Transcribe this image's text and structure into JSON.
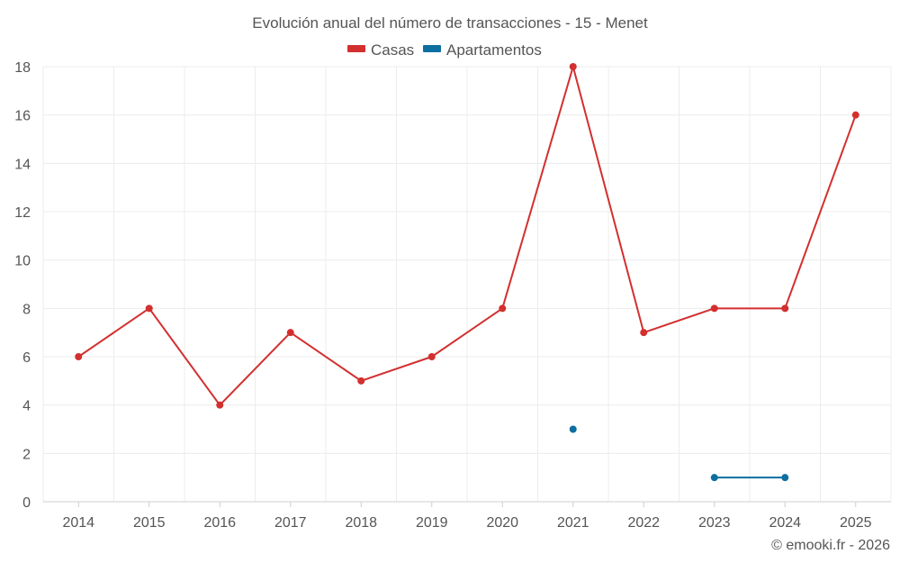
{
  "chart_data": {
    "type": "line",
    "title": "Evolución anual del número de transacciones - 15 - Menet",
    "xlabel": "",
    "ylabel": "",
    "categories": [
      "2014",
      "2015",
      "2016",
      "2017",
      "2018",
      "2019",
      "2020",
      "2021",
      "2022",
      "2023",
      "2024",
      "2025"
    ],
    "ylim": [
      0,
      18
    ],
    "yticks": [
      0,
      2,
      4,
      6,
      8,
      10,
      12,
      14,
      16,
      18
    ],
    "grid": true,
    "legend_position": "top-center",
    "series": [
      {
        "name": "Casas",
        "color": "#d32f2f",
        "values": [
          6,
          8,
          4,
          7,
          5,
          6,
          8,
          18,
          7,
          8,
          8,
          16
        ]
      },
      {
        "name": "Apartamentos",
        "color": "#0d6ea0",
        "values": [
          null,
          null,
          null,
          null,
          null,
          null,
          null,
          3,
          null,
          1,
          1,
          null
        ]
      }
    ]
  },
  "credit": "© emooki.fr - 2026"
}
